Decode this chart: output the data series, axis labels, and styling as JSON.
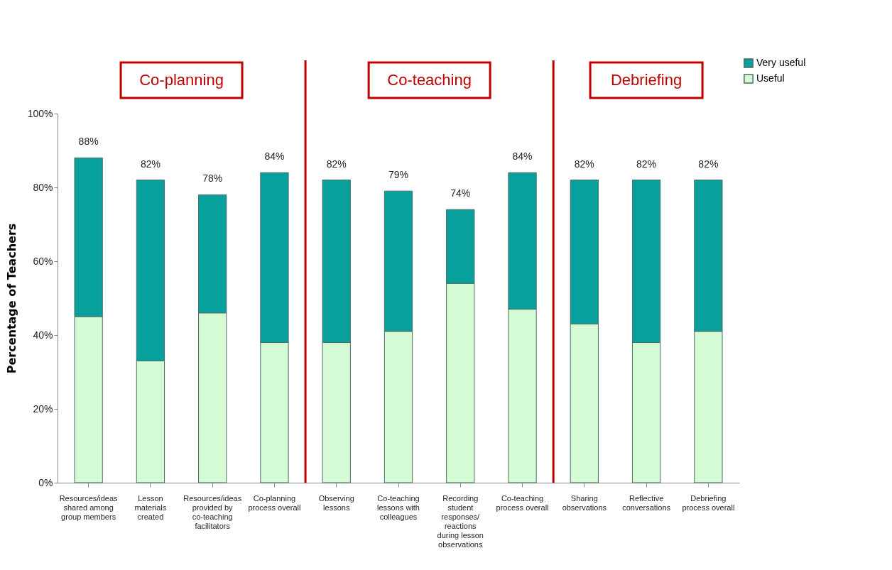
{
  "chart_data": {
    "type": "bar",
    "stacked": true,
    "ylabel": "Percentage of Teachers",
    "categories": [
      "Resources/ideas shared among group members",
      "Lesson materials created",
      "Resources/ideas provided by co-teaching facilitators",
      "Co-planning process overall",
      "Observing lessons",
      "Co-teaching lessons with colleagues",
      "Recording student responses/reactions during lesson observations",
      "Co-teaching process overall",
      "Sharing observations",
      "Reflective conversations",
      "Debriefing process overall"
    ],
    "series": [
      {
        "name": "Useful",
        "color": "#d5fbd5",
        "values": [
          45,
          33,
          46,
          38,
          38,
          41,
          54,
          47,
          43,
          38,
          41
        ]
      },
      {
        "name": "Very useful",
        "color": "#08a09c",
        "values": [
          43,
          49,
          32,
          46,
          44,
          38,
          20,
          37,
          39,
          44,
          41
        ]
      }
    ],
    "totals": [
      "88%",
      "82%",
      "78%",
      "84%",
      "82%",
      "79%",
      "74%",
      "84%",
      "82%",
      "82%",
      "82%"
    ],
    "ylim": [
      0,
      100
    ],
    "yticks": [
      {
        "value": 0,
        "label": "0%"
      },
      {
        "value": 20,
        "label": "20%"
      },
      {
        "value": 40,
        "label": "40%"
      },
      {
        "value": 60,
        "label": "60%"
      },
      {
        "value": 80,
        "label": "80%"
      },
      {
        "value": 100,
        "label": "100%"
      }
    ],
    "annotations": [
      "Co-planning",
      "Co-teaching",
      "Debriefing"
    ],
    "legend": "top right",
    "grid": false
  }
}
